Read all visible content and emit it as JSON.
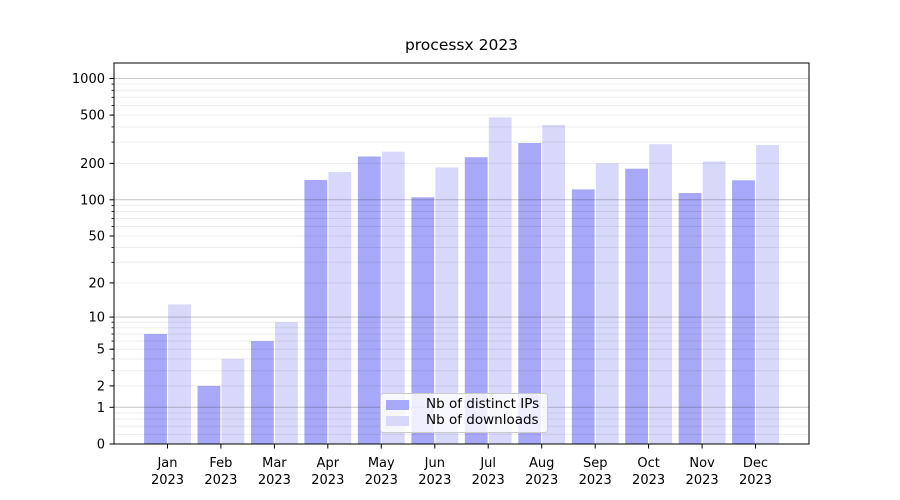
{
  "title": "processx 2023",
  "chart_data": {
    "type": "bar",
    "title": "processx 2023",
    "categories": [
      "Jan",
      "Feb",
      "Mar",
      "Apr",
      "May",
      "Jun",
      "Jul",
      "Aug",
      "Sep",
      "Oct",
      "Nov",
      "Dec"
    ],
    "year_label": "2023",
    "series": [
      {
        "name": "Nb of distinct IPs",
        "color": "#a8a8f8",
        "values": [
          7,
          2,
          6,
          146,
          228,
          105,
          225,
          295,
          122,
          181,
          114,
          145
        ]
      },
      {
        "name": "Nb of downloads",
        "color": "#d8d8fa",
        "values": [
          13,
          4,
          9,
          170,
          250,
          185,
          480,
          415,
          200,
          288,
          208,
          283
        ]
      }
    ],
    "xlabel": "",
    "ylabel": "",
    "yscale": "log1p",
    "yticks": [
      0,
      1,
      2,
      5,
      10,
      20,
      50,
      100,
      200,
      500,
      1000
    ],
    "ylim": [
      0,
      1340
    ],
    "grid": {
      "major_decades": [
        1,
        10,
        100,
        1000
      ],
      "major_color": "#c6c6c6",
      "minor_color": "#ececec"
    },
    "legend_position": "lower center",
    "colors": {
      "background": "#ffffff",
      "spine": "#000000",
      "tick_text": "#000000"
    }
  }
}
